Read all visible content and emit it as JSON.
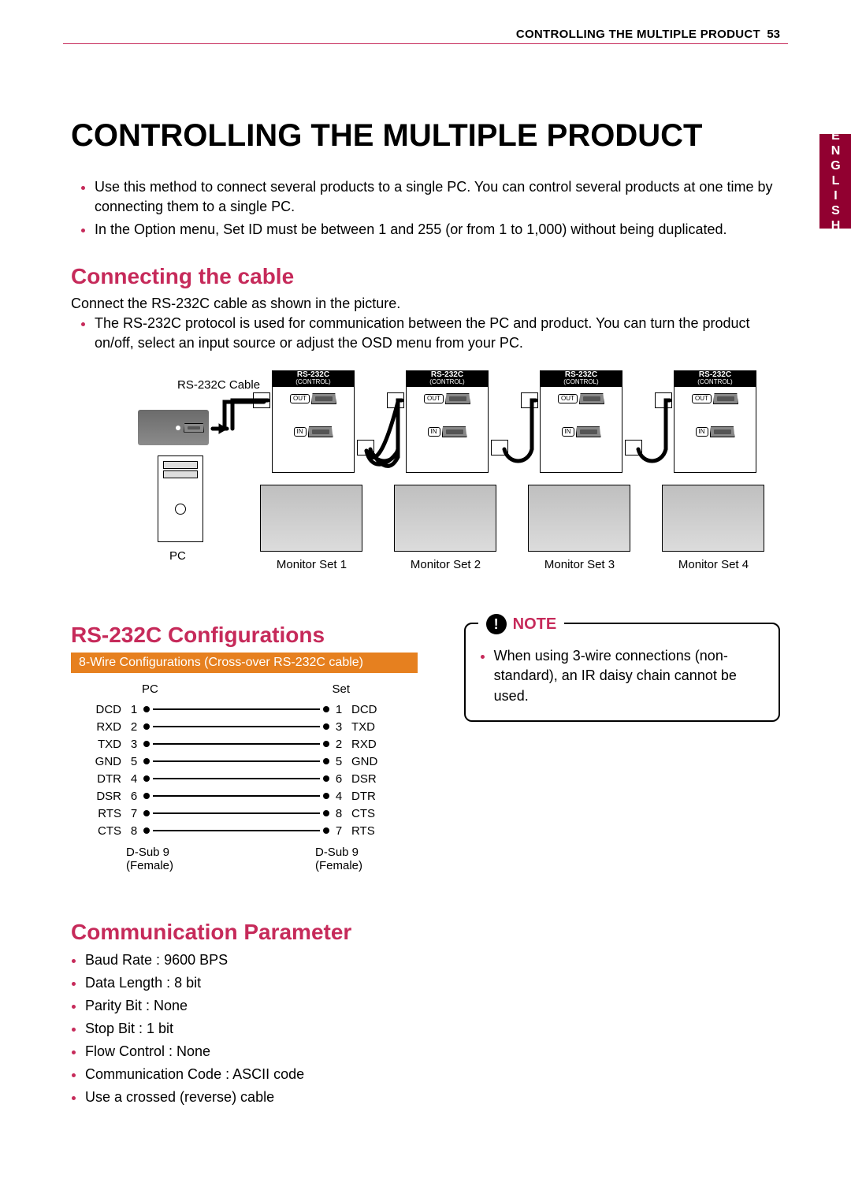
{
  "header": {
    "running_title": "CONTROLLING THE MULTIPLE PRODUCT",
    "page_number": "53",
    "side_tab": "ENGLISH"
  },
  "colors": {
    "accent": "#c62a5a",
    "side_tab_bg": "#910030",
    "banner_bg": "#e6801f",
    "text": "#000000",
    "background": "#ffffff"
  },
  "main_title": "CONTROLLING THE MULTIPLE PRODUCT",
  "intro_bullets": [
    "Use this method to connect several products to a single PC. You can control several products at one time by connecting them to a single PC.",
    "In the Option menu, Set ID must be between 1 and 255 (or from 1 to 1,000) without being duplicated."
  ],
  "section_connecting": {
    "title": "Connecting the cable",
    "lead": "Connect the RS-232C cable as shown in the picture.",
    "bullet": "The RS-232C protocol is used for communication between the PC and product. You can turn the product on/off, select an input source or adjust the OSD menu from your PC."
  },
  "diagram": {
    "cable_label": "RS-232C Cable",
    "pc_label": "PC",
    "module_header": "RS-232C",
    "module_sub": "(CONTROL)",
    "out_label": "OUT",
    "in_label": "IN",
    "monitors": [
      "Monitor Set 1",
      "Monitor Set 2",
      "Monitor Set 3",
      "Monitor Set 4"
    ]
  },
  "section_config": {
    "title": "RS-232C Configurations",
    "banner": "8-Wire Configurations (Cross-over RS-232C cable)",
    "col_left": "PC",
    "col_right": "Set",
    "rows": [
      {
        "ll": "DCD",
        "lp": "1",
        "rp": "1",
        "rl": "DCD"
      },
      {
        "ll": "RXD",
        "lp": "2",
        "rp": "3",
        "rl": "TXD"
      },
      {
        "ll": "TXD",
        "lp": "3",
        "rp": "2",
        "rl": "RXD"
      },
      {
        "ll": "GND",
        "lp": "5",
        "rp": "5",
        "rl": "GND"
      },
      {
        "ll": "DTR",
        "lp": "4",
        "rp": "6",
        "rl": "DSR"
      },
      {
        "ll": "DSR",
        "lp": "6",
        "rp": "4",
        "rl": "DTR"
      },
      {
        "ll": "RTS",
        "lp": "7",
        "rp": "8",
        "rl": "CTS"
      },
      {
        "ll": "CTS",
        "lp": "8",
        "rp": "7",
        "rl": "RTS"
      }
    ],
    "footer_left": "D-Sub 9\n(Female)",
    "footer_right": "D-Sub 9\n(Female)"
  },
  "note": {
    "title": "NOTE",
    "text": "When using 3-wire connections (non-standard), an IR daisy chain cannot be used."
  },
  "section_comm": {
    "title": "Communication Parameter",
    "items": [
      "Baud Rate : 9600 BPS",
      "Data Length : 8 bit",
      "Parity Bit : None",
      "Stop Bit : 1 bit",
      "Flow Control : None",
      "Communication Code : ASCII code",
      "Use a crossed (reverse) cable"
    ]
  }
}
